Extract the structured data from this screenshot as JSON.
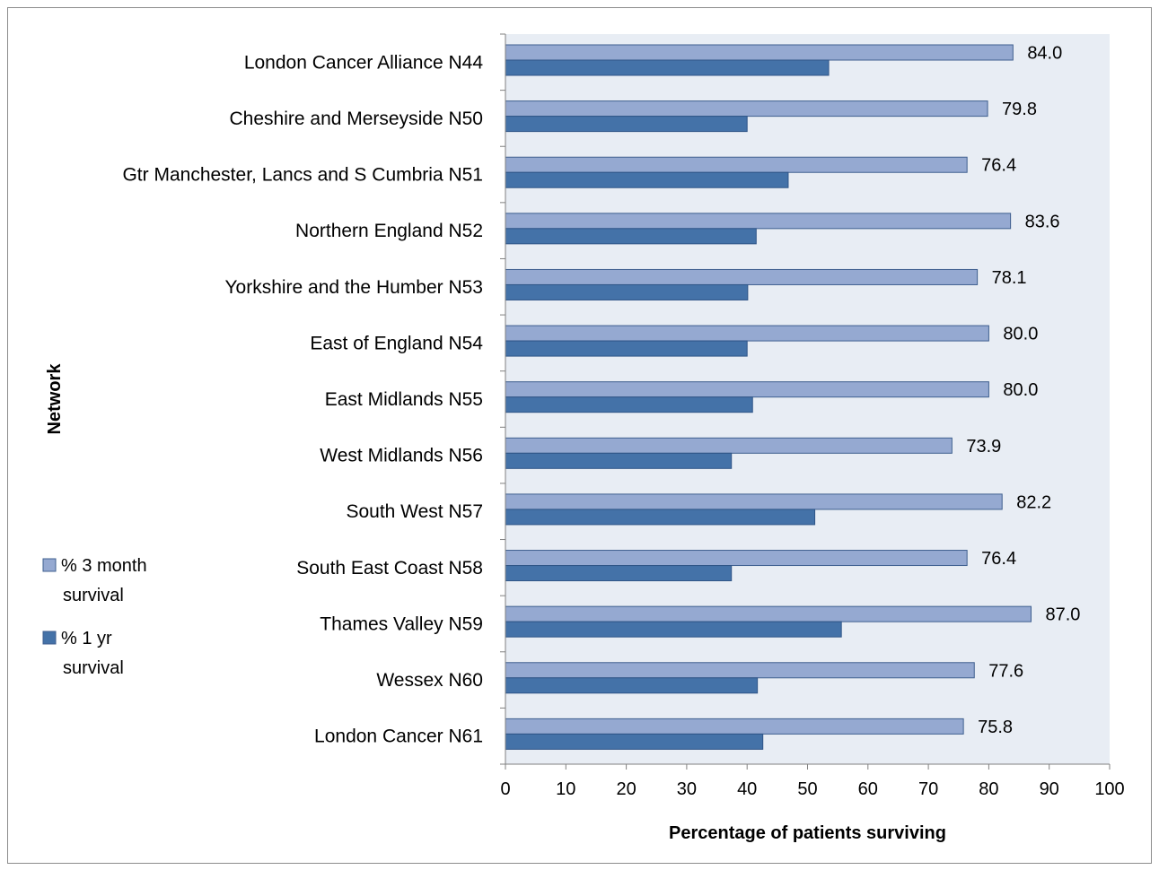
{
  "chart_data": {
    "type": "bar",
    "orientation": "horizontal",
    "categories": [
      "London Cancer Alliance N44",
      "Cheshire and Merseyside N50",
      "Gtr Manchester, Lancs and S Cumbria N51",
      "Northern England N52",
      "Yorkshire and the Humber N53",
      "East of England N54",
      "East Midlands N55",
      "West Midlands N56",
      "South West N57",
      "South East Coast N58",
      "Thames Valley N59",
      "Wessex N60",
      "London Cancer N61"
    ],
    "series": [
      {
        "name": "% 3 month survival",
        "legend_lines": [
          "% 3 month",
          "survival"
        ],
        "color": "#95a9d1",
        "values": [
          84.0,
          79.8,
          76.4,
          83.6,
          78.1,
          80.0,
          80.0,
          73.9,
          82.2,
          76.4,
          87.0,
          77.6,
          75.8
        ],
        "data_labels": [
          "84.0",
          "79.8",
          "76.4",
          "83.6",
          "78.1",
          "80.0",
          "80.0",
          "73.9",
          "82.2",
          "76.4",
          "87.0",
          "77.6",
          "75.8"
        ]
      },
      {
        "name": "% 1 yr survival",
        "legend_lines": [
          "% 1 yr",
          "survival"
        ],
        "color": "#4472a8",
        "values": [
          53.5,
          40.0,
          46.8,
          41.5,
          40.1,
          40.0,
          40.9,
          37.4,
          51.2,
          37.4,
          55.6,
          41.7,
          42.6
        ]
      }
    ],
    "xlabel": "Percentage of patients surviving",
    "ylabel": "Network",
    "xlim": [
      0,
      100
    ],
    "xticks": [
      "0",
      "10",
      "20",
      "30",
      "40",
      "50",
      "60",
      "70",
      "80",
      "90",
      "100"
    ],
    "grid": false,
    "plot_background": "#e8edf4",
    "legend_position": "left"
  }
}
